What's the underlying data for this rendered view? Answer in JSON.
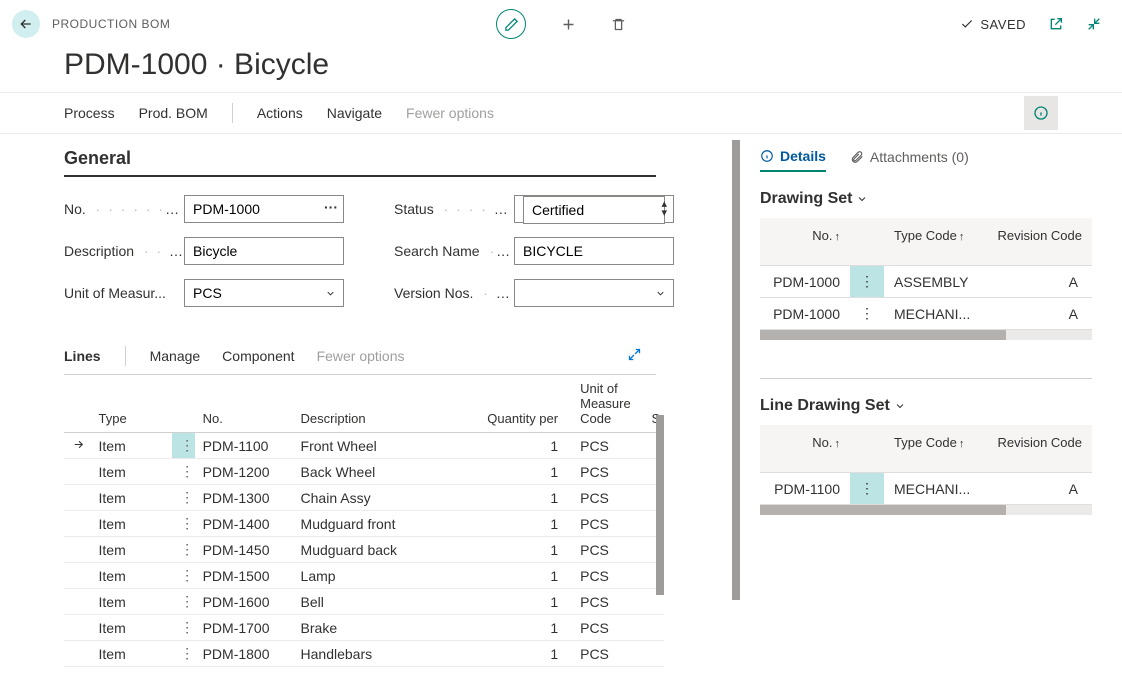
{
  "header": {
    "breadcrumb": "PRODUCTION BOM",
    "saved_label": "SAVED"
  },
  "title": "PDM-1000 · Bicycle",
  "menubar": {
    "process": "Process",
    "prod_bom": "Prod. BOM",
    "actions": "Actions",
    "navigate": "Navigate",
    "fewer": "Fewer options"
  },
  "general": {
    "section_title": "General",
    "no_label": "No.",
    "no_value": "PDM-1000",
    "desc_label": "Description",
    "desc_value": "Bicycle",
    "uom_label": "Unit of Measur...",
    "uom_value": "PCS",
    "status_label": "Status",
    "status_value": "Certified",
    "search_label": "Search Name",
    "search_value": "BICYCLE",
    "version_label": "Version Nos.",
    "version_value": ""
  },
  "lines": {
    "tab_label": "Lines",
    "manage": "Manage",
    "component": "Component",
    "fewer": "Fewer options",
    "headers": {
      "type": "Type",
      "no": "No.",
      "desc": "Description",
      "qty": "Quantity per",
      "uom1": "Unit of",
      "uom2": "Measure",
      "uom3": "Code",
      "s": "S"
    },
    "rows": [
      {
        "type": "Item",
        "no": "PDM-1100",
        "desc": "Front Wheel",
        "qty": "1",
        "uom": "PCS",
        "hl": true,
        "arrow": true
      },
      {
        "type": "Item",
        "no": "PDM-1200",
        "desc": "Back Wheel",
        "qty": "1",
        "uom": "PCS",
        "hl": false,
        "arrow": false
      },
      {
        "type": "Item",
        "no": "PDM-1300",
        "desc": "Chain Assy",
        "qty": "1",
        "uom": "PCS",
        "hl": false,
        "arrow": false
      },
      {
        "type": "Item",
        "no": "PDM-1400",
        "desc": "Mudguard front",
        "qty": "1",
        "uom": "PCS",
        "hl": false,
        "arrow": false
      },
      {
        "type": "Item",
        "no": "PDM-1450",
        "desc": "Mudguard back",
        "qty": "1",
        "uom": "PCS",
        "hl": false,
        "arrow": false
      },
      {
        "type": "Item",
        "no": "PDM-1500",
        "desc": "Lamp",
        "qty": "1",
        "uom": "PCS",
        "hl": false,
        "arrow": false
      },
      {
        "type": "Item",
        "no": "PDM-1600",
        "desc": "Bell",
        "qty": "1",
        "uom": "PCS",
        "hl": false,
        "arrow": false
      },
      {
        "type": "Item",
        "no": "PDM-1700",
        "desc": "Brake",
        "qty": "1",
        "uom": "PCS",
        "hl": false,
        "arrow": false
      },
      {
        "type": "Item",
        "no": "PDM-1800",
        "desc": "Handlebars",
        "qty": "1",
        "uom": "PCS",
        "hl": false,
        "arrow": false
      }
    ]
  },
  "factpane": {
    "details_tab": "Details",
    "attachments_tab": "Attachments (0)",
    "drawing_set": {
      "title": "Drawing Set",
      "col_no": "No.",
      "col_type": "Type Code",
      "col_rev": "Revision Code",
      "rows": [
        {
          "no": "PDM-1000",
          "type": "ASSEMBLY",
          "rev": "A",
          "hl": true
        },
        {
          "no": "PDM-1000",
          "type": "MECHANI...",
          "rev": "A",
          "hl": false
        }
      ]
    },
    "line_drawing_set": {
      "title": "Line Drawing Set",
      "col_no": "No.",
      "col_type": "Type Code",
      "col_rev": "Revision Code",
      "rows": [
        {
          "no": "PDM-1100",
          "type": "MECHANI...",
          "rev": "A",
          "hl": true
        }
      ]
    }
  },
  "icons": {
    "arrow_left": "←",
    "sort_up": "↑"
  }
}
